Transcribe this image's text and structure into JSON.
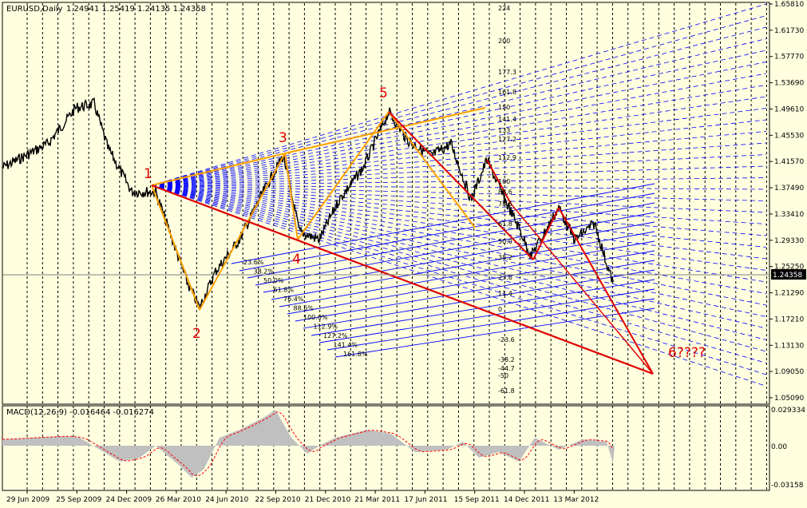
{
  "header": {
    "symbol": "EURUSD,Daily",
    "ohlc": "1.24941 1.25419 1.24135 1.24358"
  },
  "macd_header": "MACD(12,26,9) -0.016464 -0.016274",
  "price_axis": {
    "ticks": [
      "1.65810",
      "1.61730",
      "1.57770",
      "1.53690",
      "1.49610",
      "1.45530",
      "1.41570",
      "1.37490",
      "1.33410",
      "1.29330",
      "1.25250",
      "1.21290",
      "1.17210",
      "1.13130",
      "1.09050",
      "1.05090"
    ],
    "current_price": "1.24358"
  },
  "macd_axis": {
    "ticks": [
      "0.029334",
      "0.00",
      "-0.03158"
    ]
  },
  "time_axis": {
    "labels": [
      "29 Jun 2009",
      "25 Sep 2009",
      "24 Dec 2009",
      "26 Mar 2010",
      "24 Jun 2010",
      "22 Sep 2010",
      "21 Dec 2010",
      "21 Mar 2011",
      "17 Jun 2011",
      "15 Sep 2011",
      "14 Dec 2011",
      "13 Mar 2012"
    ]
  },
  "wave_labels": [
    "1",
    "2",
    "3",
    "4",
    "5",
    "6????"
  ],
  "fib_upper_labels": [
    "224",
    "200",
    "177.3",
    "161.8",
    "150",
    "141.4",
    "133",
    "127.2",
    "112.9",
    "100",
    "88.6",
    "78.6",
    "61.8",
    "50.0",
    "38.2",
    "23.6",
    "11.4",
    "0",
    "-23.6",
    "-38.2",
    "-44.7",
    "-50",
    "-61.8"
  ],
  "fib_lower_labels": [
    "23.6%",
    "38.2%",
    "50.0%",
    "61.8%",
    "76.4%",
    "88.6%",
    "100.0%",
    "112.9%",
    "127.2%",
    "141.4%",
    "161.8%"
  ],
  "colors": {
    "background": "#ffffe0",
    "price": "#000000",
    "fib_lines": "#0000ff",
    "orange": "#ffa000",
    "red": "#e00000",
    "grid": "#000000",
    "macd_hist": "#c0c0c0",
    "macd_signal": "#ff0000"
  },
  "chart_data": {
    "type": "line",
    "title": "EURUSD,Daily",
    "x": [
      "29 Jun 2009",
      "25 Sep 2009",
      "24 Dec 2009",
      "26 Mar 2010",
      "24 Jun 2010",
      "22 Sep 2010",
      "21 Dec 2010",
      "21 Mar 2011",
      "17 Jun 2011",
      "15 Sep 2011",
      "14 Dec 2011",
      "13 Mar 2012"
    ],
    "series": [
      {
        "name": "EURUSD",
        "values": [
          1.41,
          1.48,
          1.44,
          1.35,
          1.24,
          1.36,
          1.31,
          1.41,
          1.44,
          1.38,
          1.31,
          1.32
        ]
      }
    ],
    "ylim": [
      1.0509,
      1.6581
    ],
    "wave_points": [
      {
        "label": "1",
        "date": "Jan 2010",
        "price": 1.375
      },
      {
        "label": "2",
        "date": "Jun 2010",
        "price": 1.19
      },
      {
        "label": "3",
        "date": "Nov 2010",
        "price": 1.425
      },
      {
        "label": "4",
        "date": "Nov 2010",
        "price": 1.3
      },
      {
        "label": "5",
        "date": "May 2011",
        "price": 1.49
      },
      {
        "label": "6????",
        "date": "Jul 2012",
        "price": 1.09
      }
    ]
  }
}
